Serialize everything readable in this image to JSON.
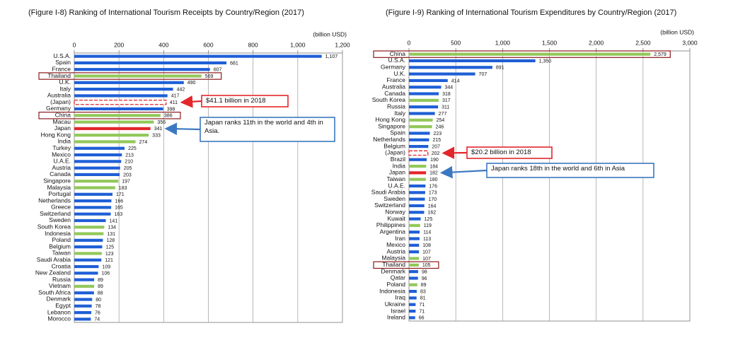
{
  "chart_data": [
    {
      "type": "bar",
      "orientation": "horizontal",
      "title": "(Figure I-8) Ranking of International Tourism Receipts by Country/Region (2017)",
      "unit_label": "(billion USD)",
      "categories": [
        "U.S.A.",
        "Spain",
        "France",
        "Thailand",
        "U.K.",
        "Italy",
        "Australia",
        "(Japan)",
        "Germany",
        "China",
        "Macau",
        "Japan",
        "Hong Kong",
        "India",
        "Turkey",
        "Mexico",
        "U.A.E.",
        "Austria",
        "Canada",
        "Singapore",
        "Malaysia",
        "Portugal",
        "Netherlands",
        "Greece",
        "Switzerland",
        "Sweden",
        "South Korea",
        "Indonesia",
        "Poland",
        "Belgium",
        "Taiwan",
        "Saudi Arabia",
        "Croatia",
        "New Zealand",
        "Russia",
        "Vietnam",
        "South Africa",
        "Denmark",
        "Egypt",
        "Lebanon",
        "Morocco"
      ],
      "values": [
        1107,
        681,
        607,
        569,
        490,
        442,
        417,
        411,
        398,
        386,
        356,
        341,
        333,
        274,
        225,
        213,
        210,
        205,
        203,
        197,
        183,
        171,
        166,
        165,
        163,
        141,
        134,
        131,
        128,
        125,
        123,
        121,
        109,
        106,
        89,
        89,
        88,
        80,
        78,
        76,
        74
      ],
      "value_labels": [
        "1,107",
        "681",
        "607",
        "569",
        "490",
        "442",
        "417",
        "411",
        "398",
        "386",
        "356",
        "341",
        "333",
        "274",
        "225",
        "213",
        "210",
        "205",
        "203",
        "197",
        "183",
        "171",
        "166",
        "165",
        "163",
        "141",
        "134",
        "131",
        "128",
        "125",
        "123",
        "121",
        "109",
        "106",
        "89",
        "89",
        "88",
        "80",
        "78",
        "76",
        "74"
      ],
      "colors": [
        "#1f5fd6",
        "#1f5fd6",
        "#1f5fd6",
        "#92c85a",
        "#1f5fd6",
        "#1f5fd6",
        "#1f5fd6",
        "#e3262b",
        "#1f5fd6",
        "#92c85a",
        "#92c85a",
        "#e3262b",
        "#92c85a",
        "#92c85a",
        "#1f5fd6",
        "#1f5fd6",
        "#1f5fd6",
        "#1f5fd6",
        "#1f5fd6",
        "#92c85a",
        "#92c85a",
        "#1f5fd6",
        "#1f5fd6",
        "#1f5fd6",
        "#1f5fd6",
        "#1f5fd6",
        "#92c85a",
        "#92c85a",
        "#1f5fd6",
        "#1f5fd6",
        "#92c85a",
        "#1f5fd6",
        "#1f5fd6",
        "#1f5fd6",
        "#1f5fd6",
        "#92c85a",
        "#1f5fd6",
        "#1f5fd6",
        "#1f5fd6",
        "#1f5fd6",
        "#1f5fd6"
      ],
      "dashed_categories": [
        "(Japan)"
      ],
      "highlighted_categories": [
        "Thailand",
        "China"
      ],
      "xlim": [
        0,
        1200
      ],
      "xticks": [
        0,
        200,
        400,
        600,
        800,
        {
          "value": 1000,
          "label": "1,000"
        },
        {
          "value": 1200,
          "label": "1,200"
        }
      ],
      "grid": true,
      "annotations": [
        {
          "text": "$41.1 billion in 2018",
          "target": "(Japan)",
          "color": "#e3262b"
        },
        {
          "text": "Japan ranks 11th in the world and 4th in Asia.",
          "target": "Japan",
          "color": "#3b78c0"
        }
      ]
    },
    {
      "type": "bar",
      "orientation": "horizontal",
      "title": "(Figure I-9) Ranking of International Tourism Expenditures by Country/Region (2017)",
      "unit_label": "(billion USD)",
      "categories": [
        "China",
        "U.S.A.",
        "Germany",
        "U.K.",
        "France",
        "Australia",
        "Canada",
        "South Korea",
        "Russia",
        "Italy",
        "Hong Kong",
        "Singapore",
        "Spain",
        "Netherlands",
        "Belgium",
        "(Japan)",
        "Brazil",
        "India",
        "Japan",
        "Taiwan",
        "U.A.E.",
        "Saudi Arabia",
        "Sweden",
        "Switzerland",
        "Norway",
        "Kuwait",
        "Philippines",
        "Argentina",
        "Iran",
        "Mexico",
        "Austria",
        "Malaysia",
        "Thailand",
        "Denmark",
        "Qatar",
        "Poland",
        "Indonesia",
        "Iraq",
        "Ukraine",
        "Israel",
        "Ireland"
      ],
      "values": [
        2579,
        1350,
        891,
        707,
        414,
        344,
        318,
        317,
        311,
        277,
        254,
        246,
        223,
        215,
        207,
        202,
        190,
        184,
        182,
        180,
        176,
        173,
        170,
        164,
        162,
        125,
        119,
        114,
        113,
        108,
        107,
        107,
        105,
        98,
        96,
        89,
        83,
        81,
        71,
        71,
        66
      ],
      "value_labels": [
        "2,579",
        "1,350",
        "891",
        "707",
        "414",
        "344",
        "318",
        "317",
        "311",
        "277",
        "254",
        "246",
        "223",
        "215",
        "207",
        "202",
        "190",
        "184",
        "182",
        "180",
        "176",
        "173",
        "170",
        "164",
        "162",
        "125",
        "119",
        "114",
        "113",
        "108",
        "107",
        "107",
        "105",
        "98",
        "96",
        "89",
        "83",
        "81",
        "71",
        "71",
        "66"
      ],
      "colors": [
        "#92c85a",
        "#1f5fd6",
        "#1f5fd6",
        "#1f5fd6",
        "#1f5fd6",
        "#1f5fd6",
        "#1f5fd6",
        "#92c85a",
        "#1f5fd6",
        "#1f5fd6",
        "#92c85a",
        "#92c85a",
        "#1f5fd6",
        "#1f5fd6",
        "#1f5fd6",
        "#e3262b",
        "#1f5fd6",
        "#92c85a",
        "#e3262b",
        "#92c85a",
        "#1f5fd6",
        "#1f5fd6",
        "#1f5fd6",
        "#1f5fd6",
        "#1f5fd6",
        "#1f5fd6",
        "#92c85a",
        "#1f5fd6",
        "#1f5fd6",
        "#1f5fd6",
        "#1f5fd6",
        "#92c85a",
        "#92c85a",
        "#1f5fd6",
        "#1f5fd6",
        "#92c85a",
        "#1f5fd6",
        "#1f5fd6",
        "#1f5fd6",
        "#1f5fd6",
        "#1f5fd6"
      ],
      "dashed_categories": [
        "(Japan)"
      ],
      "highlighted_categories": [
        "China",
        "Thailand"
      ],
      "xlim": [
        0,
        3000
      ],
      "xticks": [
        0,
        500,
        {
          "value": 1000,
          "label": "1,000"
        },
        {
          "value": 1500,
          "label": "1,500"
        },
        {
          "value": 2000,
          "label": "2,000"
        },
        {
          "value": 2500,
          "label": "2,500"
        },
        {
          "value": 3000,
          "label": "3,000"
        }
      ],
      "grid": true,
      "annotations": [
        {
          "text": "$20.2 billion in 2018",
          "target": "(Japan)",
          "color": "#e3262b"
        },
        {
          "text": "Japan ranks 18th in the world and 6th in Asia",
          "target": "Japan",
          "color": "#3b78c0"
        }
      ]
    }
  ]
}
